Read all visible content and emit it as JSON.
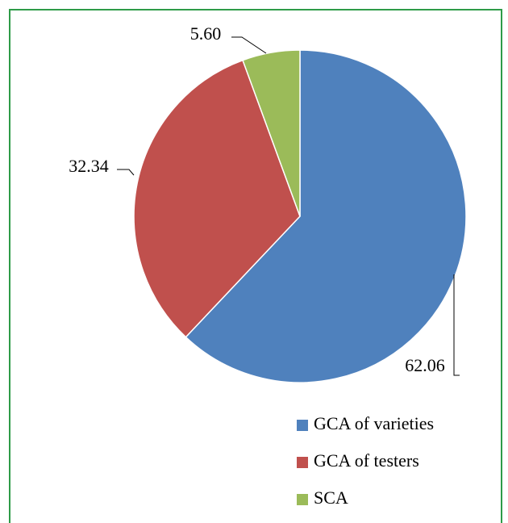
{
  "chart_data": {
    "type": "pie",
    "categories": [
      "GCA of varieties",
      "GCA of testers",
      "SCA"
    ],
    "values": [
      62.06,
      32.34,
      5.6
    ],
    "value_labels": [
      "62.06",
      "32.34",
      "5.60"
    ],
    "colors": [
      "#4f81bd",
      "#c0504d",
      "#9bbb59"
    ],
    "legend": "bottom-right"
  }
}
